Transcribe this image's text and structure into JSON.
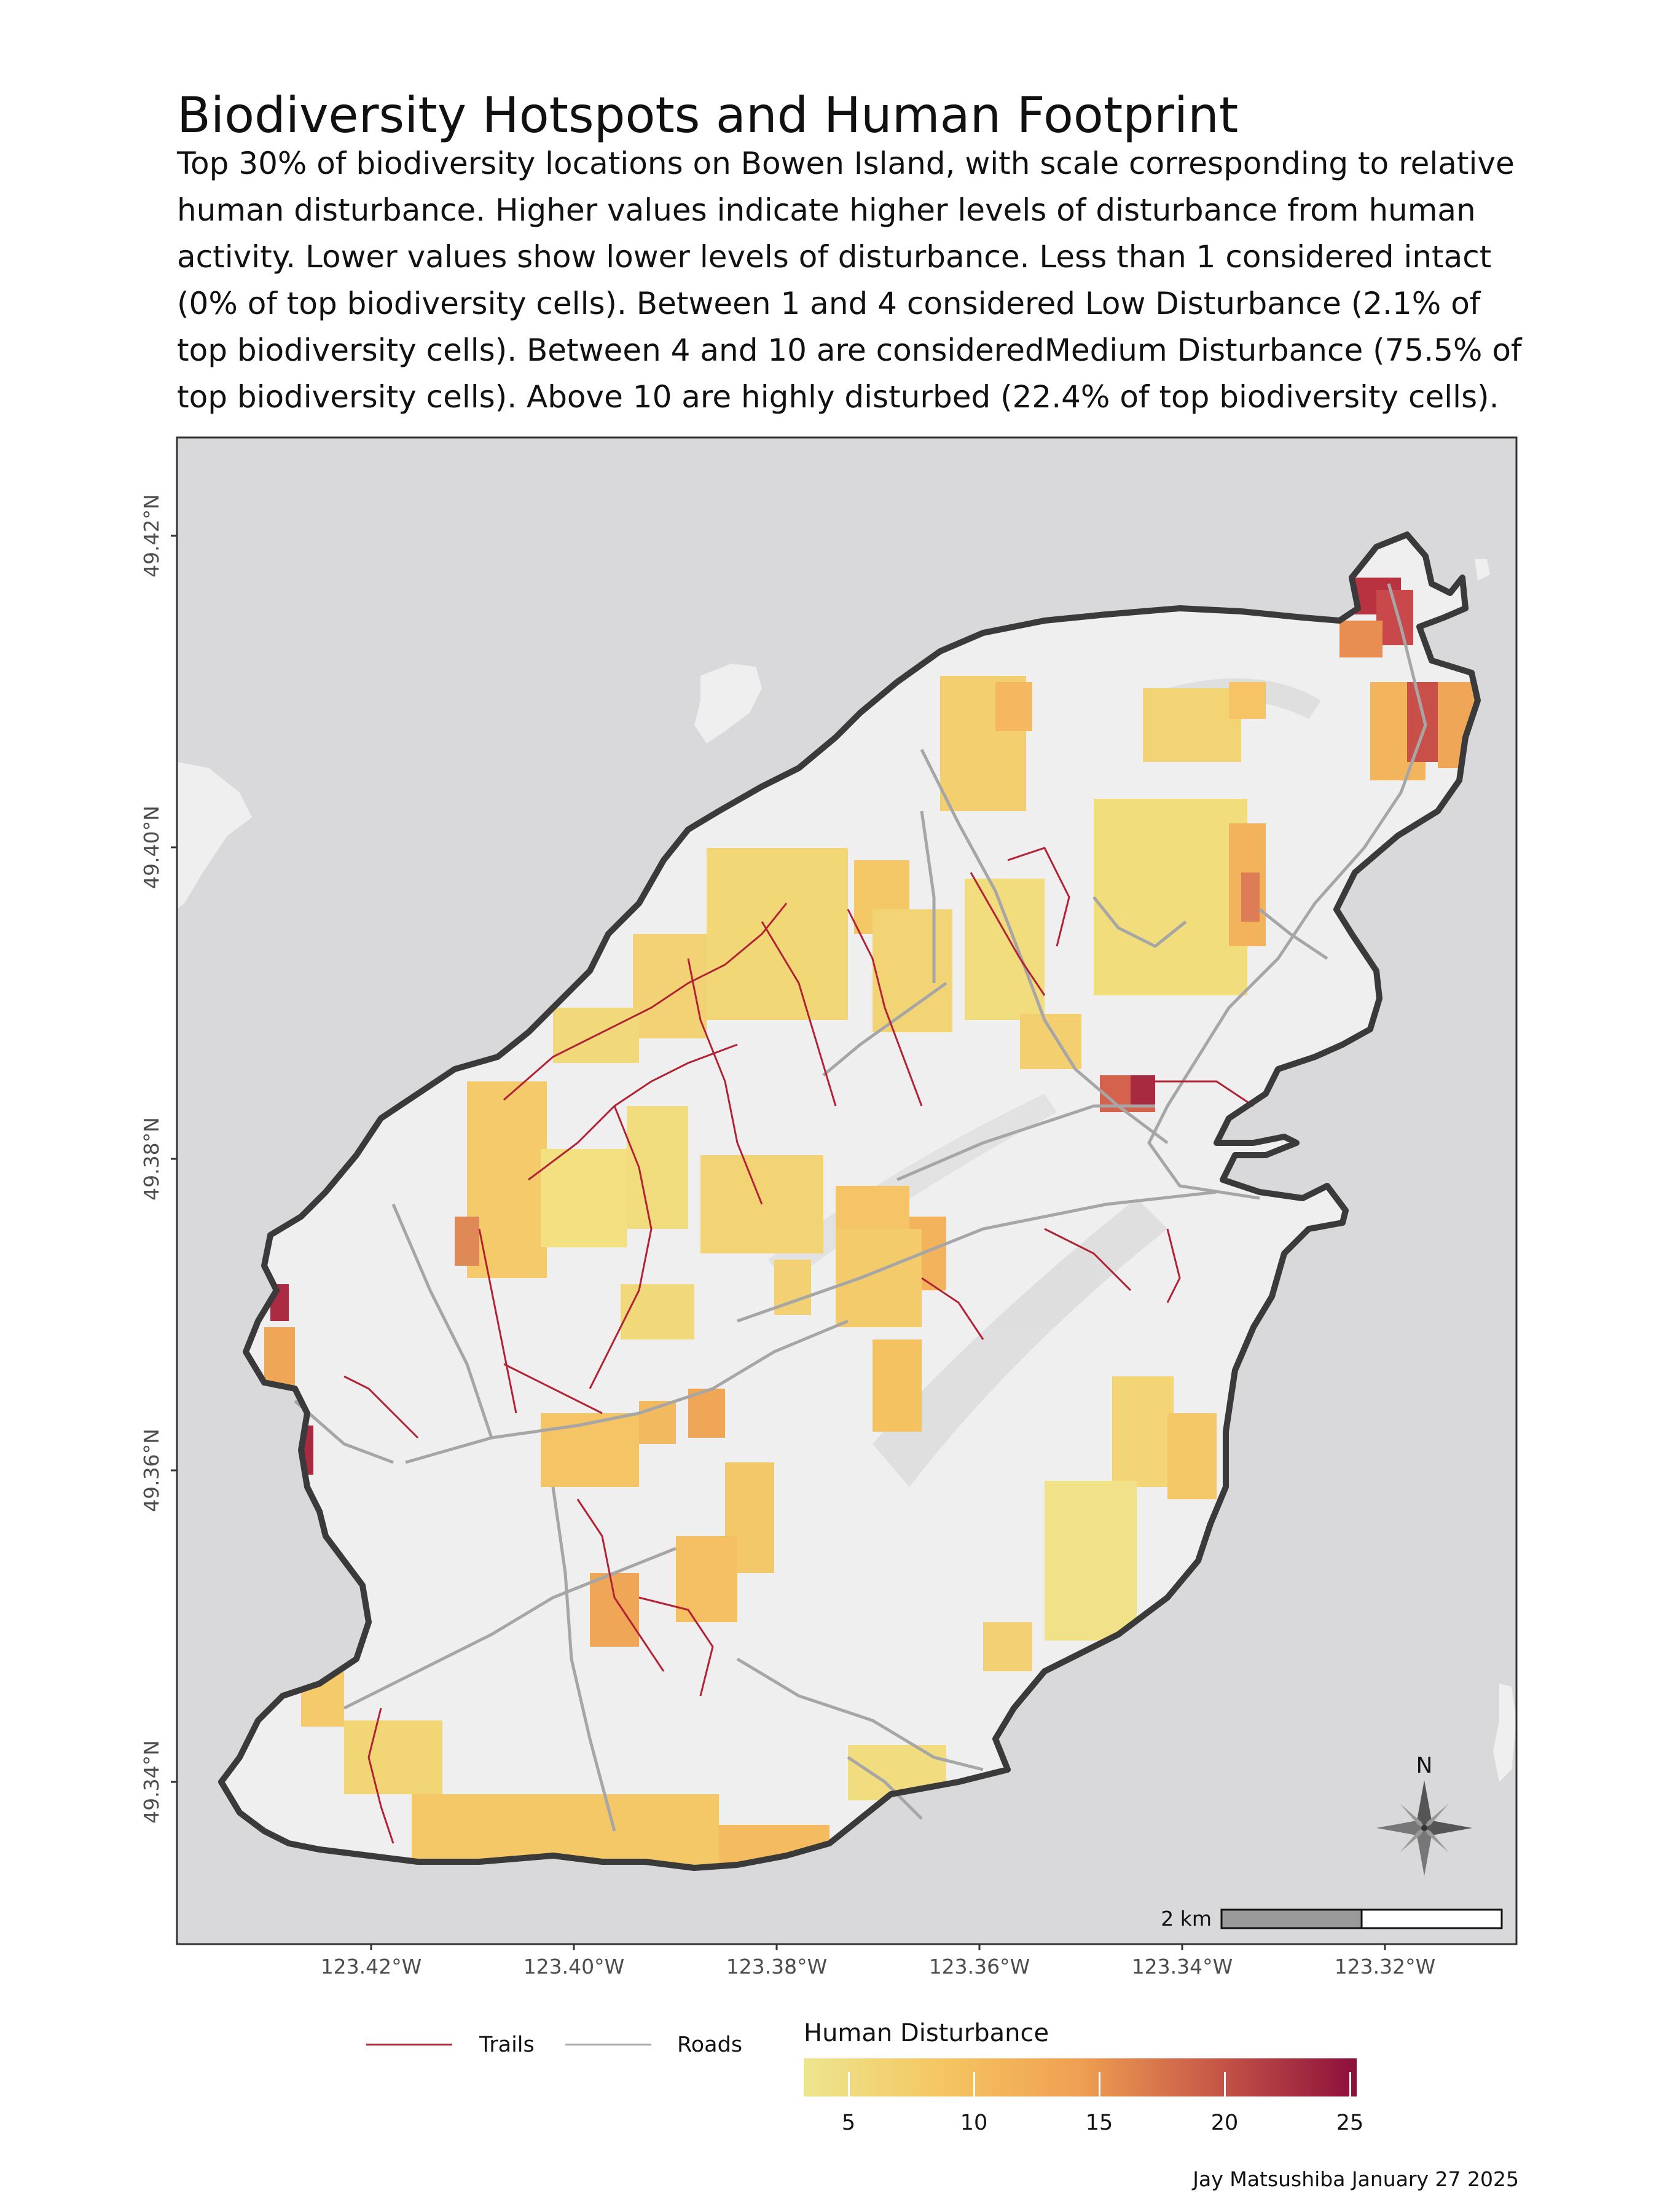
{
  "title": "Biodiversity Hotspots and Human Footprint",
  "subtitle": "Top 30% of biodiversity locations on Bowen Island, with scale corresponding to relative human disturbance. Higher values indicate higher levels of disturbance from human activity. Lower values show lower levels of disturbance. Less than 1 considered intact (0% of top biodiversity cells). Between 1 and 4 considered Low Disturbance (2.1% of top biodiversity cells). Between 4 and 10 are consideredMedium Disturbance (75.5% of top biodiversity cells). Above 10 are highly disturbed (22.4% of top biodiversity cells).",
  "map": {
    "lat_ticks": [
      "49.42°N",
      "49.40°N",
      "49.38°N",
      "49.36°N",
      "49.34°N"
    ],
    "lon_ticks": [
      "123.42°W",
      "123.40°W",
      "123.38°W",
      "123.36°W",
      "123.34°W",
      "123.32°W"
    ],
    "north_arrow_label": "N",
    "scale_bar_label": "2 km",
    "colors": {
      "water": "#d9d9db",
      "land": "#efefef",
      "coastline": "#3a3a3a",
      "trails": "#b22234",
      "roads": "#a6a6a6"
    }
  },
  "legend": {
    "trails_label": "Trails",
    "roads_label": "Roads",
    "colorbar_title": "Human Disturbance",
    "colorbar_ticks": [
      "5",
      "10",
      "15",
      "20",
      "25"
    ],
    "colorbar_colors": [
      "#ede58f",
      "#f5c661",
      "#ef9f52",
      "#c55648",
      "#8c0f3b"
    ]
  },
  "caption": "Jay Matsushiba January 27 2025"
}
